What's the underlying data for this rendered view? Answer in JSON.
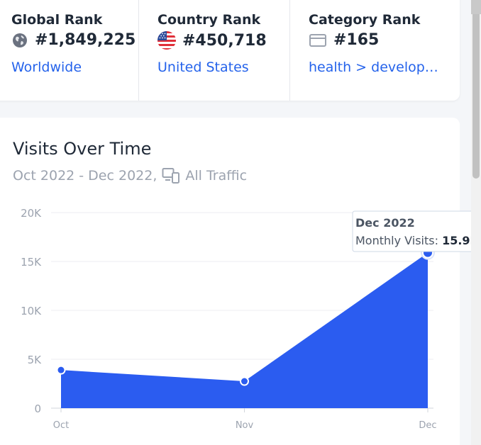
{
  "ranks": [
    {
      "title": "Global Rank",
      "value": "#1,849,225",
      "link": "Worldwide",
      "icon": "globe-icon"
    },
    {
      "title": "Country Rank",
      "value": "#450,718",
      "link": "United States",
      "icon": "us-flag-icon"
    },
    {
      "title": "Category Rank",
      "value": "#165",
      "link": "health > develop…",
      "icon": "category-icon"
    }
  ],
  "visits": {
    "title": "Visits Over Time",
    "range": "Oct 2022 - Dec 2022,",
    "traffic": "All Traffic",
    "traffic_icon": "devices-icon"
  },
  "tooltip": {
    "month": "Dec 2022",
    "label": "Monthly Visits:",
    "value": "15.9K"
  },
  "colors": {
    "accent": "#2563eb",
    "area_fill": "#2b5cf0",
    "text": "#1f2937",
    "muted": "#9ca3af"
  },
  "chart_data": {
    "type": "area",
    "categories": [
      "Oct",
      "Nov",
      "Dec"
    ],
    "series": [
      {
        "values": [
          3900,
          2750,
          15900
        ]
      }
    ],
    "ylim": [
      0,
      20000
    ],
    "yticks": [
      0,
      5000,
      10000,
      15000,
      20000
    ],
    "ytick_labels": [
      "0",
      "5K",
      "10K",
      "15K",
      "20K"
    ],
    "grid": true,
    "xlabel": "",
    "ylabel": ""
  }
}
